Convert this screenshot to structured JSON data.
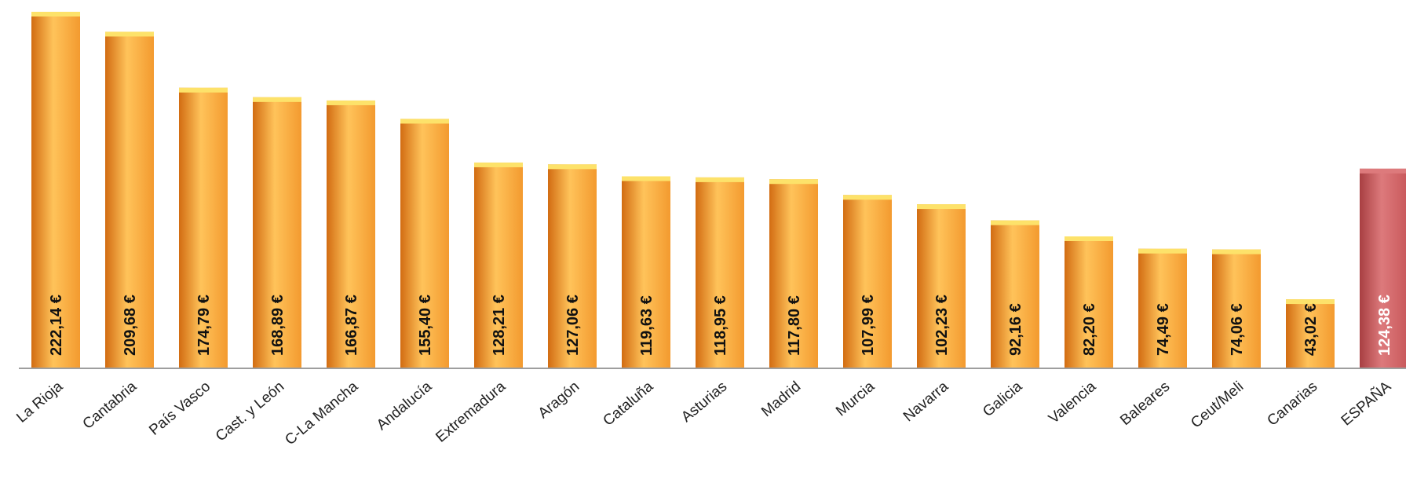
{
  "chart_data": {
    "type": "bar",
    "title": "",
    "xlabel": "",
    "ylabel": "",
    "ylim": [
      0,
      230
    ],
    "grid": false,
    "legend": "none",
    "categories": [
      "La Rioja",
      "Cantabria",
      "País Vasco",
      "Cast. y León",
      "C-La Mancha",
      "Andalucía",
      "Extremadura",
      "Aragón",
      "Cataluña",
      "Asturias",
      "Madrid",
      "Murcia",
      "Navarra",
      "Galicia",
      "Valencia",
      "Baleares",
      "Ceut/Meli",
      "Canarias",
      "ESPAÑA"
    ],
    "values": [
      222.14,
      209.68,
      174.79,
      168.89,
      166.87,
      155.4,
      128.21,
      127.06,
      119.63,
      118.95,
      117.8,
      107.99,
      102.23,
      92.16,
      82.2,
      74.49,
      74.06,
      43.02,
      124.38
    ],
    "value_labels": [
      "222,14 €",
      "209,68 €",
      "174,79 €",
      "168,89 €",
      "166,87 €",
      "155,40 €",
      "128,21 €",
      "127,06 €",
      "119,63 €",
      "118,95 €",
      "117,80 €",
      "107,99 €",
      "102,23 €",
      "92,16 €",
      "82,20 €",
      "74,49 €",
      "74,06 €",
      "43,02 €",
      "124,38 €"
    ],
    "highlight_category": "ESPAÑA",
    "colors": {
      "bar": "#f39a2f",
      "bar_light": "#ffc35a",
      "bar_dark": "#d26c12",
      "bar_top": "#fde26a",
      "highlight": "#c8575a",
      "highlight_light": "#dd7a7c",
      "highlight_dark": "#a83f42",
      "axis": "#9e9e9e",
      "label_dark": "#111111",
      "label_light": "#ffffff"
    }
  }
}
